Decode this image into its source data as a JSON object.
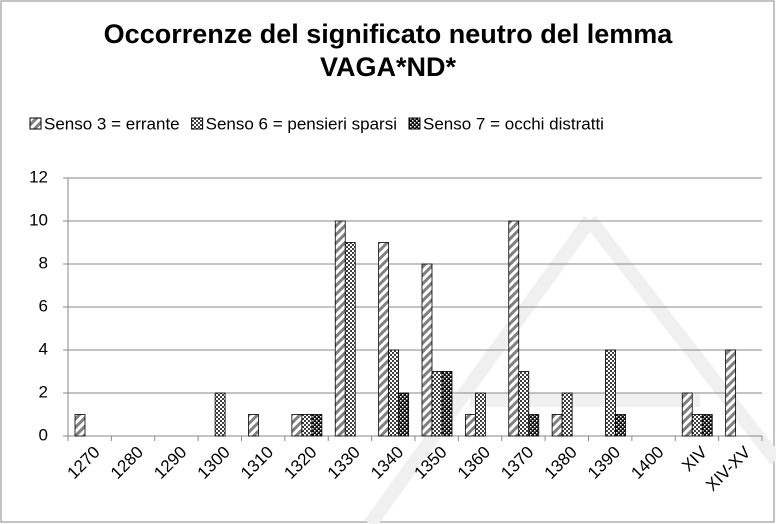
{
  "chart_data": {
    "type": "bar",
    "title": "Occorrenze del significato neutro del lemma VAGA*ND*",
    "categories": [
      "1270",
      "1280",
      "1290",
      "1300",
      "1310",
      "1320",
      "1330",
      "1340",
      "1350",
      "1360",
      "1370",
      "1380",
      "1390",
      "1400",
      "XIV",
      "XIV-XV"
    ],
    "series": [
      {
        "name": "Senso 3 = errante",
        "color": "#808080",
        "values": [
          1,
          0,
          0,
          0,
          1,
          1,
          10,
          9,
          8,
          1,
          10,
          1,
          0,
          0,
          2,
          4
        ]
      },
      {
        "name": "Senso 6 = pensieri sparsi",
        "color": "#404040",
        "values": [
          0,
          0,
          0,
          2,
          0,
          1,
          9,
          4,
          3,
          2,
          3,
          2,
          4,
          0,
          1,
          0
        ]
      },
      {
        "name": "Senso 7 = occhi distratti",
        "color": "#101010",
        "values": [
          0,
          0,
          0,
          0,
          0,
          1,
          0,
          2,
          3,
          0,
          1,
          0,
          1,
          0,
          1,
          0
        ]
      }
    ],
    "ylim": [
      0,
      12
    ],
    "yticks": [
      0,
      2,
      4,
      6,
      8,
      10,
      12
    ],
    "grid": true
  }
}
